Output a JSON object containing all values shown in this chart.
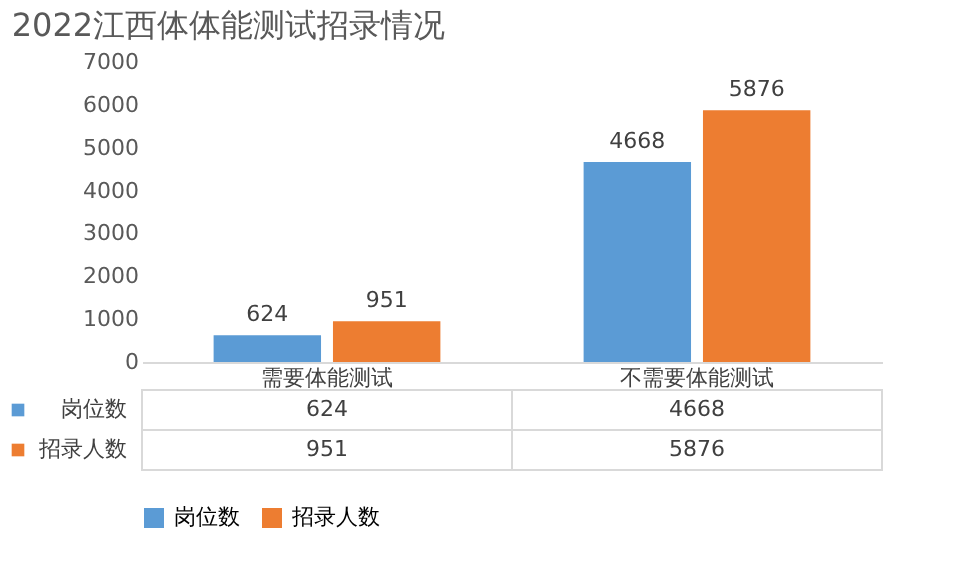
{
  "chart_data": {
    "type": "bar",
    "title": "2022江西体体能测试招录情况",
    "categories": [
      "需要体能测试",
      "不需要体能测试"
    ],
    "series": [
      {
        "name": "岗位数",
        "color": "#5b9bd5",
        "values": [
          624,
          4668
        ],
        "value_labels": [
          "624",
          "4668"
        ]
      },
      {
        "name": "招录人数",
        "color": "#ed7d31",
        "values": [
          951,
          5876
        ],
        "value_labels": [
          "951",
          "5876"
        ]
      }
    ],
    "ylim": [
      0,
      7000
    ],
    "yticks": [
      0,
      1000,
      2000,
      3000,
      4000,
      5000,
      6000,
      7000
    ],
    "data_labels": true,
    "legend": "bottom",
    "grid": false
  }
}
